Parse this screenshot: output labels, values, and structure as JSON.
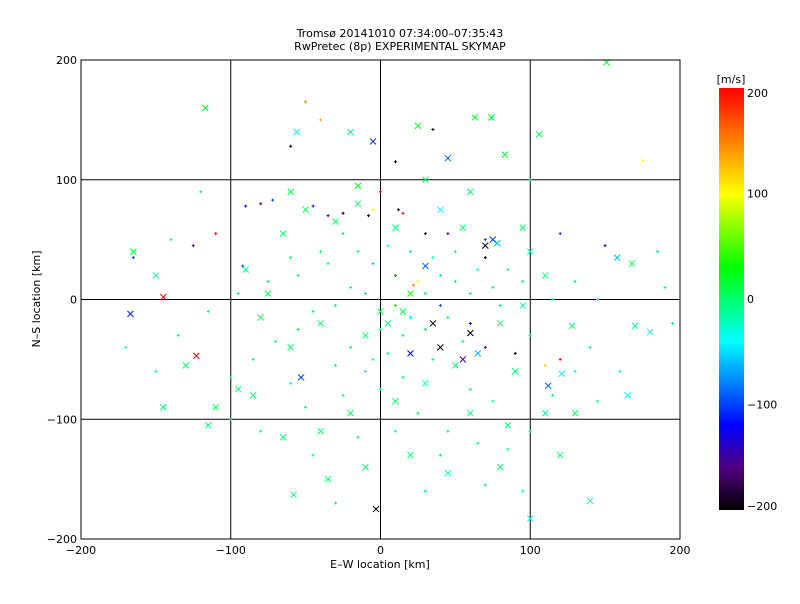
{
  "chart_data": {
    "type": "scatter",
    "title": "Tromsø 20141010 07:34:00–07:35:43",
    "subtitle": "RwPretec (8p) EXPERIMENTAL SKYMAP",
    "xlabel": "E–W location [km]",
    "ylabel": "N–S location [km]",
    "xlim": [
      -200,
      200
    ],
    "ylim": [
      -200,
      200
    ],
    "xticks": [
      "−200",
      "−100",
      "0",
      "100",
      "200"
    ],
    "yticks": [
      "−200",
      "−100",
      "0",
      "100",
      "200"
    ],
    "xtick_values": [
      -200,
      -100,
      0,
      100,
      200
    ],
    "ytick_values": [
      -200,
      -100,
      0,
      100,
      200
    ],
    "grid": true,
    "colorbar": {
      "label": "[m/s]",
      "range": [
        -200,
        200
      ],
      "ticks": [
        "200",
        "100",
        "0",
        "−100",
        "−200"
      ],
      "tick_values": [
        200,
        100,
        0,
        -100,
        -200
      ],
      "stops": [
        [
          200,
          "#ff0000"
        ],
        [
          150,
          "#ff8000"
        ],
        [
          100,
          "#ffff00"
        ],
        [
          30,
          "#00ff00"
        ],
        [
          -40,
          "#00ffff"
        ],
        [
          -120,
          "#0000ff"
        ],
        [
          -160,
          "#500080"
        ],
        [
          -200,
          "#000000"
        ]
      ]
    },
    "points": [
      [
        -145,
        2,
        200,
        "x"
      ],
      [
        -123,
        -47,
        200,
        "x"
      ],
      [
        -167,
        -12,
        -110,
        "x"
      ],
      [
        -5,
        132,
        -110,
        "x"
      ],
      [
        -53,
        -65,
        -100,
        "x"
      ],
      [
        45,
        118,
        -90,
        "x"
      ],
      [
        -3,
        -175,
        -200,
        "x"
      ],
      [
        60,
        -28,
        -200,
        "x"
      ],
      [
        35,
        -20,
        -200,
        "x"
      ],
      [
        -117,
        160,
        20,
        "x"
      ],
      [
        151,
        198,
        20,
        "x"
      ],
      [
        -56,
        140,
        -40,
        "x"
      ],
      [
        74,
        152,
        20,
        "x"
      ],
      [
        63,
        152,
        20,
        "x"
      ],
      [
        83,
        121,
        20,
        "x"
      ],
      [
        106,
        138,
        10,
        "x"
      ],
      [
        -115,
        -105,
        0,
        "x"
      ],
      [
        -58,
        -163,
        0,
        "x"
      ],
      [
        100,
        -183,
        -40,
        "x"
      ],
      [
        140,
        -168,
        -30,
        "x"
      ],
      [
        170,
        -22,
        -10,
        "x"
      ],
      [
        180,
        -27,
        -30,
        "x"
      ],
      [
        158,
        35,
        -60,
        "x"
      ],
      [
        168,
        30,
        10,
        "x"
      ],
      [
        128,
        -22,
        0,
        "x"
      ],
      [
        121,
        -62,
        -40,
        "x"
      ],
      [
        112,
        -72,
        -90,
        "x"
      ],
      [
        90,
        -60,
        0,
        "x"
      ],
      [
        75,
        50,
        -100,
        "x"
      ],
      [
        78,
        47,
        -60,
        "x"
      ],
      [
        70,
        45,
        -200,
        "x"
      ],
      [
        30,
        28,
        -90,
        "x"
      ],
      [
        20,
        5,
        40,
        "x"
      ],
      [
        15,
        -10,
        10,
        "x"
      ],
      [
        5,
        -20,
        0,
        "x"
      ],
      [
        -10,
        -30,
        0,
        "x"
      ],
      [
        -40,
        -20,
        0,
        "x"
      ],
      [
        -60,
        -40,
        0,
        "x"
      ],
      [
        -80,
        -15,
        0,
        "x"
      ],
      [
        -95,
        -75,
        0,
        "x"
      ],
      [
        -110,
        -90,
        0,
        "x"
      ],
      [
        -75,
        5,
        10,
        "x"
      ],
      [
        -90,
        25,
        0,
        "x"
      ],
      [
        -65,
        55,
        0,
        "x"
      ],
      [
        -50,
        75,
        10,
        "x"
      ],
      [
        -30,
        65,
        0,
        "x"
      ],
      [
        -15,
        80,
        0,
        "x"
      ],
      [
        10,
        60,
        0,
        "x"
      ],
      [
        40,
        75,
        -40,
        "x"
      ],
      [
        55,
        60,
        0,
        "x"
      ],
      [
        95,
        60,
        0,
        "x"
      ],
      [
        100,
        40,
        -20,
        "x"
      ],
      [
        110,
        20,
        0,
        "x"
      ],
      [
        95,
        -5,
        -20,
        "x"
      ],
      [
        80,
        -20,
        0,
        "x"
      ],
      [
        65,
        -45,
        -60,
        "x"
      ],
      [
        50,
        -55,
        0,
        "x"
      ],
      [
        30,
        -70,
        -30,
        "x"
      ],
      [
        10,
        -85,
        0,
        "x"
      ],
      [
        -20,
        -95,
        0,
        "x"
      ],
      [
        -40,
        -110,
        0,
        "x"
      ],
      [
        -65,
        -115,
        0,
        "x"
      ],
      [
        -85,
        -80,
        0,
        "x"
      ],
      [
        60,
        -95,
        -10,
        "x"
      ],
      [
        85,
        -105,
        0,
        "x"
      ],
      [
        110,
        -95,
        -20,
        "x"
      ],
      [
        120,
        -130,
        0,
        "x"
      ],
      [
        80,
        -140,
        0,
        "x"
      ],
      [
        45,
        -145,
        -20,
        "x"
      ],
      [
        20,
        -130,
        0,
        "x"
      ],
      [
        -10,
        -140,
        0,
        "x"
      ],
      [
        -35,
        -150,
        0,
        "x"
      ],
      [
        130,
        -95,
        0,
        "x"
      ],
      [
        165,
        -80,
        -40,
        "x"
      ],
      [
        -130,
        -55,
        0,
        "x"
      ],
      [
        -145,
        -90,
        0,
        "x"
      ],
      [
        -150,
        20,
        -10,
        "x"
      ],
      [
        -165,
        40,
        20,
        "x"
      ],
      [
        30,
        100,
        0,
        "x"
      ],
      [
        60,
        90,
        0,
        "x"
      ],
      [
        -60,
        90,
        10,
        "x"
      ],
      [
        -20,
        140,
        -10,
        "x"
      ],
      [
        25,
        145,
        20,
        "x"
      ],
      [
        -15,
        95,
        30,
        "x"
      ],
      [
        40,
        -40,
        -200,
        "x"
      ],
      [
        55,
        -50,
        -150,
        "x"
      ],
      [
        20,
        -45,
        -120,
        "x"
      ],
      [
        0,
        -10,
        0,
        "x"
      ],
      [
        25,
        15,
        100,
        "+"
      ],
      [
        22,
        12,
        150,
        "+"
      ],
      [
        -8,
        70,
        -200,
        "+"
      ],
      [
        -25,
        72,
        -200,
        "+"
      ],
      [
        -35,
        70,
        -160,
        "+"
      ],
      [
        -45,
        78,
        -140,
        "+"
      ],
      [
        -80,
        80,
        -160,
        "+"
      ],
      [
        -90,
        78,
        -120,
        "+"
      ],
      [
        -72,
        83,
        -100,
        "+"
      ],
      [
        15,
        72,
        200,
        "+"
      ],
      [
        12,
        75,
        -200,
        "+"
      ],
      [
        0,
        90,
        200,
        "+"
      ],
      [
        -5,
        75,
        100,
        "+"
      ],
      [
        30,
        55,
        -200,
        "+"
      ],
      [
        45,
        55,
        -160,
        "+"
      ],
      [
        70,
        50,
        -100,
        "+"
      ],
      [
        120,
        55,
        -100,
        "+"
      ],
      [
        150,
        45,
        -150,
        "+"
      ],
      [
        -110,
        55,
        200,
        "+"
      ],
      [
        -125,
        45,
        -150,
        "+"
      ],
      [
        -165,
        35,
        -100,
        "+"
      ],
      [
        -92,
        28,
        -100,
        "+"
      ],
      [
        -50,
        165,
        150,
        "+"
      ],
      [
        -40,
        150,
        130,
        "+"
      ],
      [
        35,
        142,
        -200,
        "+"
      ],
      [
        -60,
        128,
        -200,
        "+"
      ],
      [
        10,
        115,
        -200,
        "+"
      ],
      [
        175,
        116,
        100,
        "+"
      ],
      [
        70,
        35,
        -200,
        "+"
      ],
      [
        90,
        -45,
        -200,
        "+"
      ],
      [
        120,
        -50,
        200,
        "+"
      ],
      [
        110,
        -55,
        120,
        "+"
      ],
      [
        70,
        -40,
        -150,
        "+"
      ],
      [
        60,
        -20,
        -120,
        "+"
      ],
      [
        40,
        -5,
        -100,
        "+"
      ],
      [
        10,
        20,
        -80,
        "+"
      ],
      [
        -5,
        30,
        -60,
        "+"
      ],
      [
        -20,
        10,
        0,
        "+"
      ],
      [
        -30,
        -5,
        0,
        "+"
      ],
      [
        -45,
        -10,
        0,
        "+"
      ],
      [
        -55,
        -25,
        10,
        "+"
      ],
      [
        -70,
        -35,
        0,
        "+"
      ],
      [
        -85,
        -50,
        0,
        "+"
      ],
      [
        -100,
        -65,
        0,
        "+"
      ],
      [
        -60,
        -70,
        -30,
        "+"
      ],
      [
        -30,
        -55,
        0,
        "+"
      ],
      [
        -10,
        -60,
        -20,
        "+"
      ],
      [
        5,
        -45,
        0,
        "+"
      ],
      [
        15,
        -30,
        0,
        "+"
      ],
      [
        30,
        -25,
        10,
        "+"
      ],
      [
        45,
        -15,
        0,
        "+"
      ],
      [
        60,
        5,
        0,
        "+"
      ],
      [
        75,
        10,
        0,
        "+"
      ],
      [
        85,
        25,
        0,
        "+"
      ],
      [
        65,
        25,
        -30,
        "+"
      ],
      [
        50,
        15,
        0,
        "+"
      ],
      [
        35,
        35,
        -20,
        "+"
      ],
      [
        20,
        40,
        0,
        "+"
      ],
      [
        5,
        45,
        -40,
        "+"
      ],
      [
        -15,
        40,
        0,
        "+"
      ],
      [
        -35,
        30,
        0,
        "+"
      ],
      [
        -55,
        20,
        0,
        "+"
      ],
      [
        -75,
        15,
        0,
        "+"
      ],
      [
        -95,
        5,
        0,
        "+"
      ],
      [
        -115,
        -10,
        0,
        "+"
      ],
      [
        -135,
        -30,
        0,
        "+"
      ],
      [
        -100,
        -100,
        0,
        "+"
      ],
      [
        -80,
        -110,
        0,
        "+"
      ],
      [
        -50,
        -90,
        0,
        "+"
      ],
      [
        -25,
        -80,
        -10,
        "+"
      ],
      [
        0,
        -75,
        0,
        "+"
      ],
      [
        25,
        -95,
        0,
        "+"
      ],
      [
        45,
        -110,
        0,
        "+"
      ],
      [
        65,
        -120,
        0,
        "+"
      ],
      [
        85,
        -125,
        0,
        "+"
      ],
      [
        100,
        -110,
        0,
        "+"
      ],
      [
        115,
        -80,
        0,
        "+"
      ],
      [
        130,
        -60,
        -10,
        "+"
      ],
      [
        140,
        -40,
        0,
        "+"
      ],
      [
        100,
        -30,
        0,
        "+"
      ],
      [
        115,
        0,
        0,
        "+"
      ],
      [
        130,
        15,
        0,
        "+"
      ],
      [
        145,
        0,
        -20,
        "+"
      ],
      [
        95,
        15,
        0,
        "+"
      ],
      [
        80,
        -5,
        0,
        "+"
      ],
      [
        55,
        -35,
        0,
        "+"
      ],
      [
        35,
        -50,
        0,
        "+"
      ],
      [
        15,
        -65,
        0,
        "+"
      ],
      [
        -5,
        -50,
        0,
        "+"
      ],
      [
        -20,
        -40,
        0,
        "+"
      ],
      [
        10,
        -5,
        20,
        "+"
      ],
      [
        30,
        5,
        0,
        "+"
      ],
      [
        -10,
        5,
        0,
        "+"
      ],
      [
        0,
        -25,
        0,
        "+"
      ],
      [
        20,
        -15,
        -30,
        "+"
      ],
      [
        40,
        20,
        0,
        "+"
      ],
      [
        -40,
        40,
        0,
        "+"
      ],
      [
        -60,
        35,
        0,
        "+"
      ],
      [
        -25,
        55,
        0,
        "+"
      ],
      [
        50,
        40,
        0,
        "+"
      ],
      [
        10,
        -110,
        0,
        "+"
      ],
      [
        -15,
        -115,
        0,
        "+"
      ],
      [
        40,
        -130,
        0,
        "+"
      ],
      [
        70,
        -155,
        0,
        "+"
      ],
      [
        -30,
        -170,
        0,
        "+"
      ],
      [
        30,
        -160,
        0,
        "+"
      ],
      [
        95,
        -160,
        0,
        "+"
      ],
      [
        -45,
        -130,
        0,
        "+"
      ],
      [
        60,
        -75,
        0,
        "+"
      ],
      [
        75,
        -85,
        -20,
        "+"
      ],
      [
        -150,
        -60,
        0,
        "+"
      ],
      [
        -170,
        -40,
        -20,
        "+"
      ],
      [
        185,
        40,
        0,
        "+"
      ],
      [
        190,
        10,
        0,
        "+"
      ],
      [
        195,
        -20,
        0,
        "+"
      ],
      [
        160,
        -60,
        -20,
        "+"
      ],
      [
        145,
        -85,
        0,
        "+"
      ],
      [
        -120,
        90,
        0,
        "+"
      ],
      [
        -140,
        50,
        0,
        "+"
      ],
      [
        100,
        100,
        0,
        "+"
      ]
    ]
  }
}
